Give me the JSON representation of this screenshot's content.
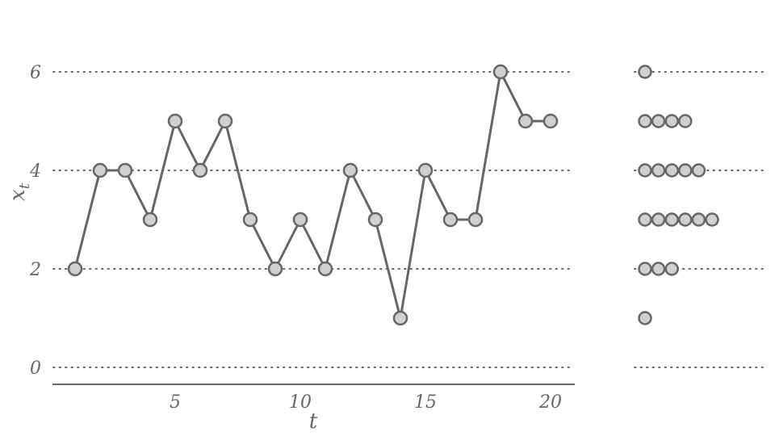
{
  "chart_data": {
    "type": "line",
    "xlabel": "t",
    "ylabel": "x",
    "ylabel_subscript": "t",
    "x": [
      1,
      2,
      3,
      4,
      5,
      6,
      7,
      8,
      9,
      10,
      11,
      12,
      13,
      14,
      15,
      16,
      17,
      18,
      19,
      20
    ],
    "values": [
      2,
      4,
      4,
      3,
      5,
      4,
      5,
      3,
      2,
      3,
      2,
      4,
      3,
      1,
      4,
      3,
      3,
      6,
      5,
      5
    ],
    "xticks": [
      5,
      10,
      15,
      20
    ],
    "yticks": [
      0,
      2,
      4,
      6
    ],
    "ylim": [
      0,
      6
    ],
    "grid": "horizontal dotted",
    "marginal": {
      "type": "dot-histogram",
      "levels": [
        1,
        2,
        3,
        4,
        5,
        6
      ],
      "counts": [
        1,
        3,
        6,
        5,
        4,
        1
      ]
    }
  }
}
